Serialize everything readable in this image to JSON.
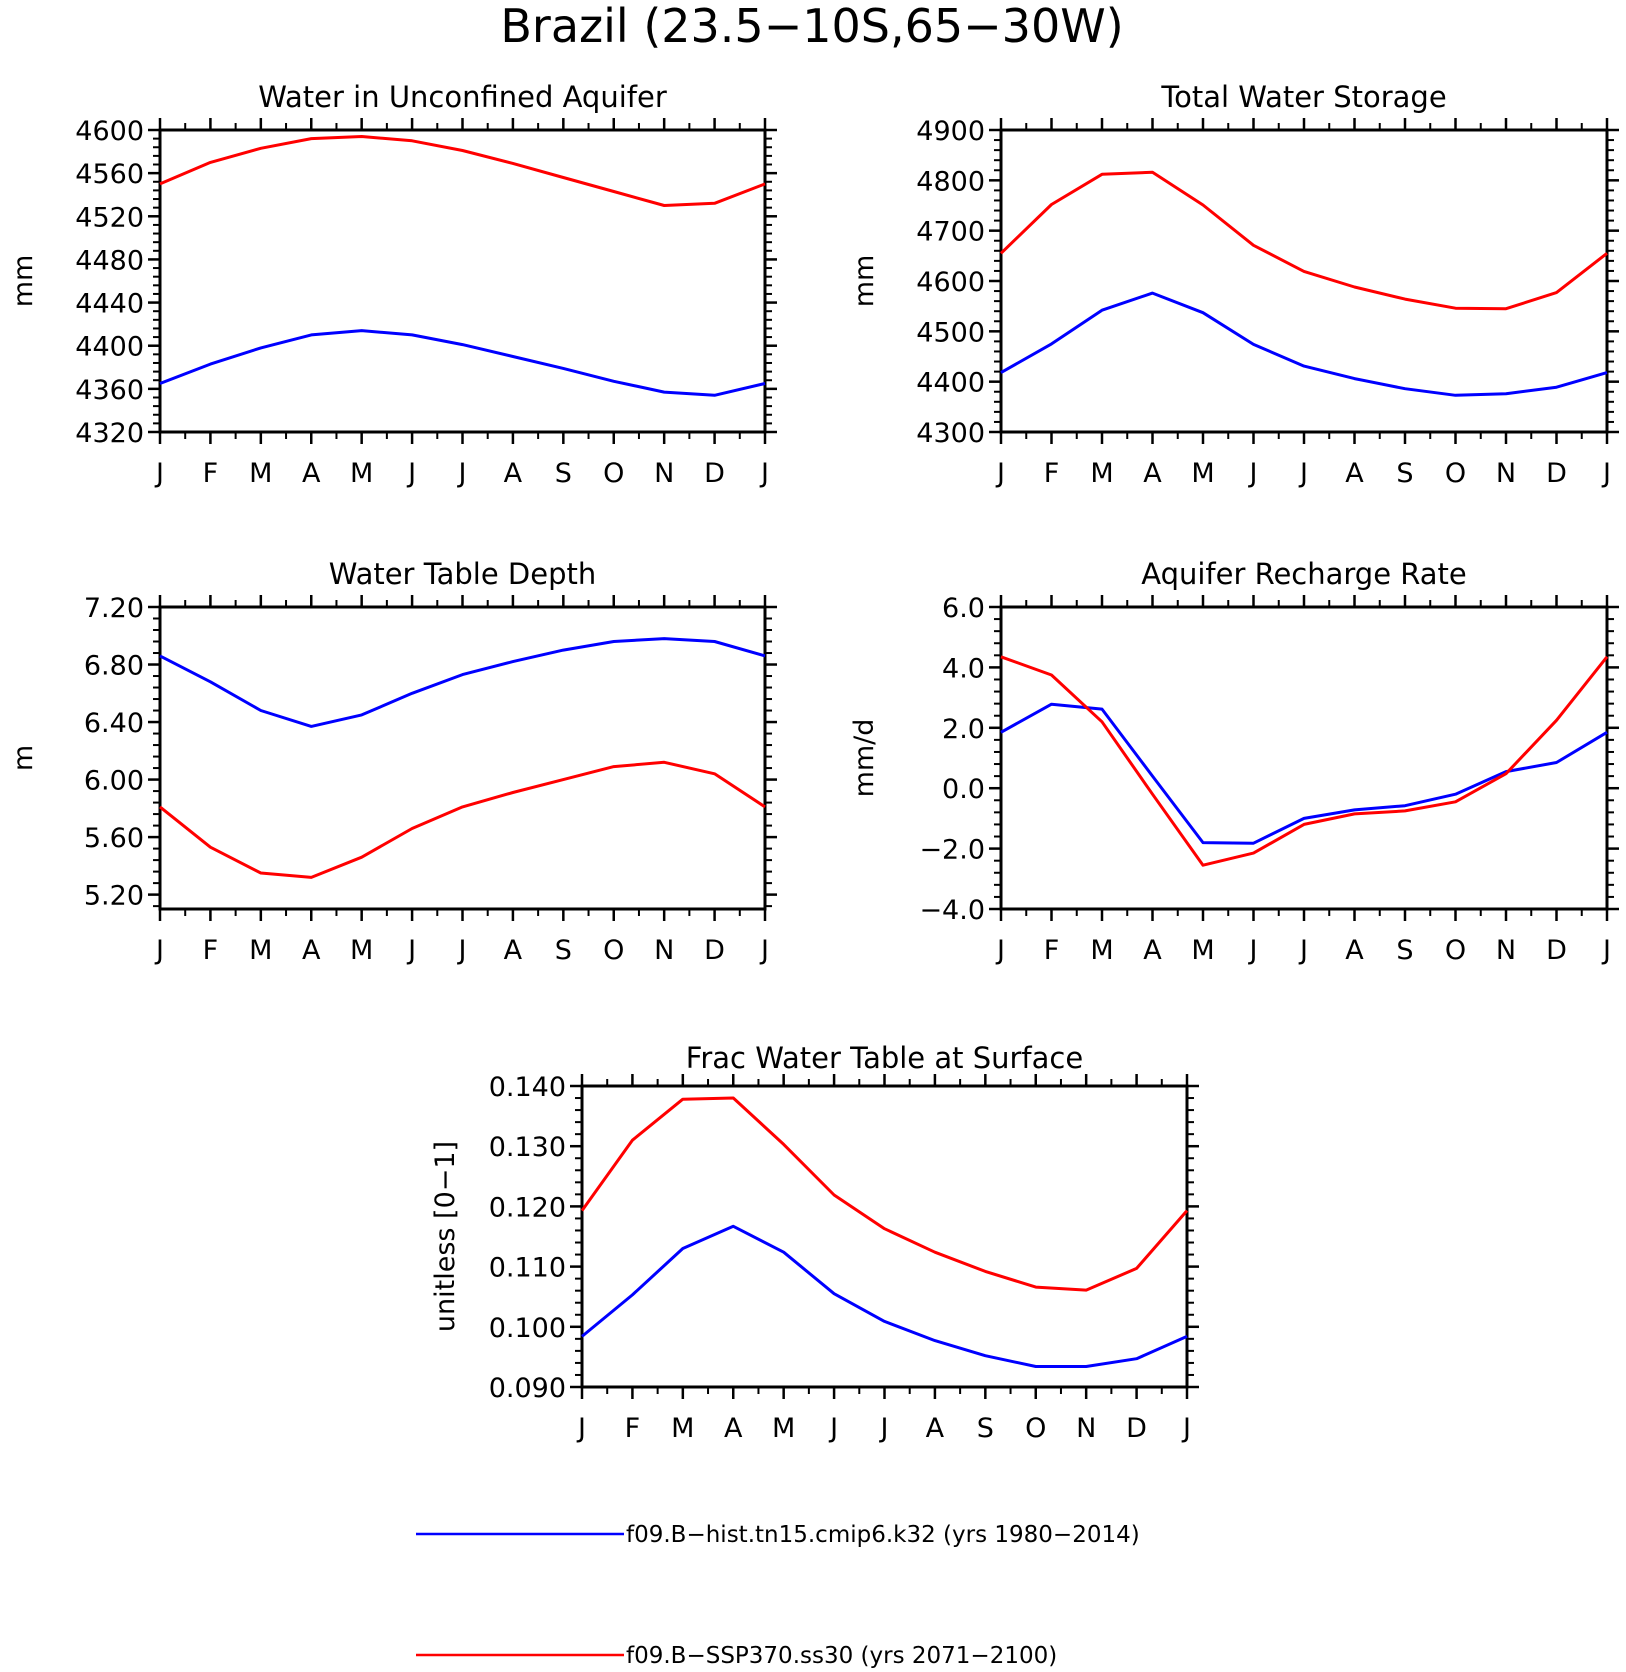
{
  "figure": {
    "title": "Brazil (23.5−10S,65−30W)"
  },
  "chart_data": [
    {
      "type": "line",
      "title": "Water in Unconfined Aquifer",
      "ylabel": "mm",
      "x": [
        "J",
        "F",
        "M",
        "A",
        "M",
        "J",
        "J",
        "A",
        "S",
        "O",
        "N",
        "D",
        "J"
      ],
      "ylim": [
        4320,
        4600
      ],
      "yticks": [
        "4320",
        "4360",
        "4400",
        "4440",
        "4480",
        "4520",
        "4560",
        "4600"
      ],
      "ytick_values": [
        4320,
        4360,
        4400,
        4440,
        4480,
        4520,
        4560,
        4600
      ],
      "series": [
        {
          "name": "f09.B−hist.tn15.cmip6.k32 (yrs 1980−2014)",
          "color": "#0000ff",
          "values": [
            4365,
            4383,
            4398,
            4410,
            4414,
            4410,
            4401,
            4390,
            4379,
            4367,
            4357,
            4354,
            4365
          ]
        },
        {
          "name": "f09.B−SSP370.ss30 (yrs 2071−2100)",
          "color": "#ff0000",
          "values": [
            4550,
            4570,
            4583,
            4592,
            4594,
            4590,
            4581,
            4569,
            4556,
            4543,
            4530,
            4532,
            4550
          ]
        }
      ]
    },
    {
      "type": "line",
      "title": "Total Water Storage",
      "ylabel": "mm",
      "x": [
        "J",
        "F",
        "M",
        "A",
        "M",
        "J",
        "J",
        "A",
        "S",
        "O",
        "N",
        "D",
        "J"
      ],
      "ylim": [
        4300,
        4900
      ],
      "yticks": [
        "4300",
        "4400",
        "4500",
        "4600",
        "4700",
        "4800",
        "4900"
      ],
      "ytick_values": [
        4300,
        4400,
        4500,
        4600,
        4700,
        4800,
        4900
      ],
      "series": [
        {
          "name": "f09.B−hist.tn15.cmip6.k32 (yrs 1980−2014)",
          "color": "#0000ff",
          "values": [
            4418,
            4475,
            4542,
            4576,
            4537,
            4474,
            4431,
            4406,
            4386,
            4373,
            4376,
            4389,
            4418
          ]
        },
        {
          "name": "f09.B−SSP370.ss30 (yrs 2071−2100)",
          "color": "#ff0000",
          "values": [
            4655,
            4752,
            4812,
            4816,
            4751,
            4671,
            4619,
            4588,
            4564,
            4546,
            4545,
            4577,
            4655
          ]
        }
      ]
    },
    {
      "type": "line",
      "title": "Water Table Depth",
      "ylabel": "m",
      "x": [
        "J",
        "F",
        "M",
        "A",
        "M",
        "J",
        "J",
        "A",
        "S",
        "O",
        "N",
        "D",
        "J"
      ],
      "ylim": [
        5.1,
        7.2
      ],
      "yticks": [
        "5.20",
        "5.60",
        "6.00",
        "6.40",
        "6.80",
        "7.20"
      ],
      "ytick_values": [
        5.2,
        5.6,
        6.0,
        6.4,
        6.8,
        7.2
      ],
      "series": [
        {
          "name": "f09.B−hist.tn15.cmip6.k32 (yrs 1980−2014)",
          "color": "#0000ff",
          "values": [
            6.86,
            6.68,
            6.48,
            6.37,
            6.45,
            6.6,
            6.73,
            6.82,
            6.9,
            6.96,
            6.98,
            6.96,
            6.86
          ]
        },
        {
          "name": "f09.B−SSP370.ss30 (yrs 2071−2100)",
          "color": "#ff0000",
          "values": [
            5.81,
            5.53,
            5.35,
            5.32,
            5.46,
            5.66,
            5.81,
            5.91,
            6.0,
            6.09,
            6.12,
            6.04,
            5.81
          ]
        }
      ]
    },
    {
      "type": "line",
      "title": "Aquifer Recharge Rate",
      "ylabel": "mm/d",
      "x": [
        "J",
        "F",
        "M",
        "A",
        "M",
        "J",
        "J",
        "A",
        "S",
        "O",
        "N",
        "D",
        "J"
      ],
      "ylim": [
        -4.0,
        6.0
      ],
      "yticks": [
        "−4.0",
        "−2.0",
        "0.0",
        "2.0",
        "4.0",
        "6.0"
      ],
      "ytick_values": [
        -4,
        -2,
        0,
        2,
        4,
        6
      ],
      "series": [
        {
          "name": "f09.B−hist.tn15.cmip6.k32 (yrs 1980−2014)",
          "color": "#0000ff",
          "values": [
            1.85,
            2.78,
            2.62,
            0.4,
            -1.8,
            -1.82,
            -1.0,
            -0.72,
            -0.58,
            -0.2,
            0.55,
            0.85,
            1.85
          ]
        },
        {
          "name": "f09.B−SSP370.ss30 (yrs 2071−2100)",
          "color": "#ff0000",
          "values": [
            4.35,
            3.75,
            2.2,
            -0.2,
            -2.55,
            -2.15,
            -1.2,
            -0.85,
            -0.75,
            -0.45,
            0.48,
            2.25,
            4.35
          ]
        }
      ]
    },
    {
      "type": "line",
      "title": "Frac Water Table at Surface",
      "ylabel": "unitless [0−1]",
      "x": [
        "J",
        "F",
        "M",
        "A",
        "M",
        "J",
        "J",
        "A",
        "S",
        "O",
        "N",
        "D",
        "J"
      ],
      "ylim": [
        0.09,
        0.14
      ],
      "yticks": [
        "0.090",
        "0.100",
        "0.110",
        "0.120",
        "0.130",
        "0.140"
      ],
      "ytick_values": [
        0.09,
        0.1,
        0.11,
        0.12,
        0.13,
        0.14
      ],
      "series": [
        {
          "name": "f09.B−hist.tn15.cmip6.k32 (yrs 1980−2014)",
          "color": "#0000ff",
          "values": [
            0.0984,
            0.1053,
            0.113,
            0.1167,
            0.1124,
            0.1055,
            0.1009,
            0.0977,
            0.0952,
            0.0934,
            0.0934,
            0.0947,
            0.0984
          ]
        },
        {
          "name": "f09.B−SSP370.ss30 (yrs 2071−2100)",
          "color": "#ff0000",
          "values": [
            0.1193,
            0.131,
            0.1378,
            0.138,
            0.1303,
            0.1219,
            0.1163,
            0.1124,
            0.1092,
            0.1066,
            0.1061,
            0.1097,
            0.1193
          ]
        }
      ]
    }
  ],
  "legend": [
    {
      "label": "f09.B−hist.tn15.cmip6.k32 (yrs 1980−2014)",
      "color": "#0000ff"
    },
    {
      "label": "f09.B−SSP370.ss30 (yrs 2071−2100)",
      "color": "#ff0000"
    }
  ]
}
